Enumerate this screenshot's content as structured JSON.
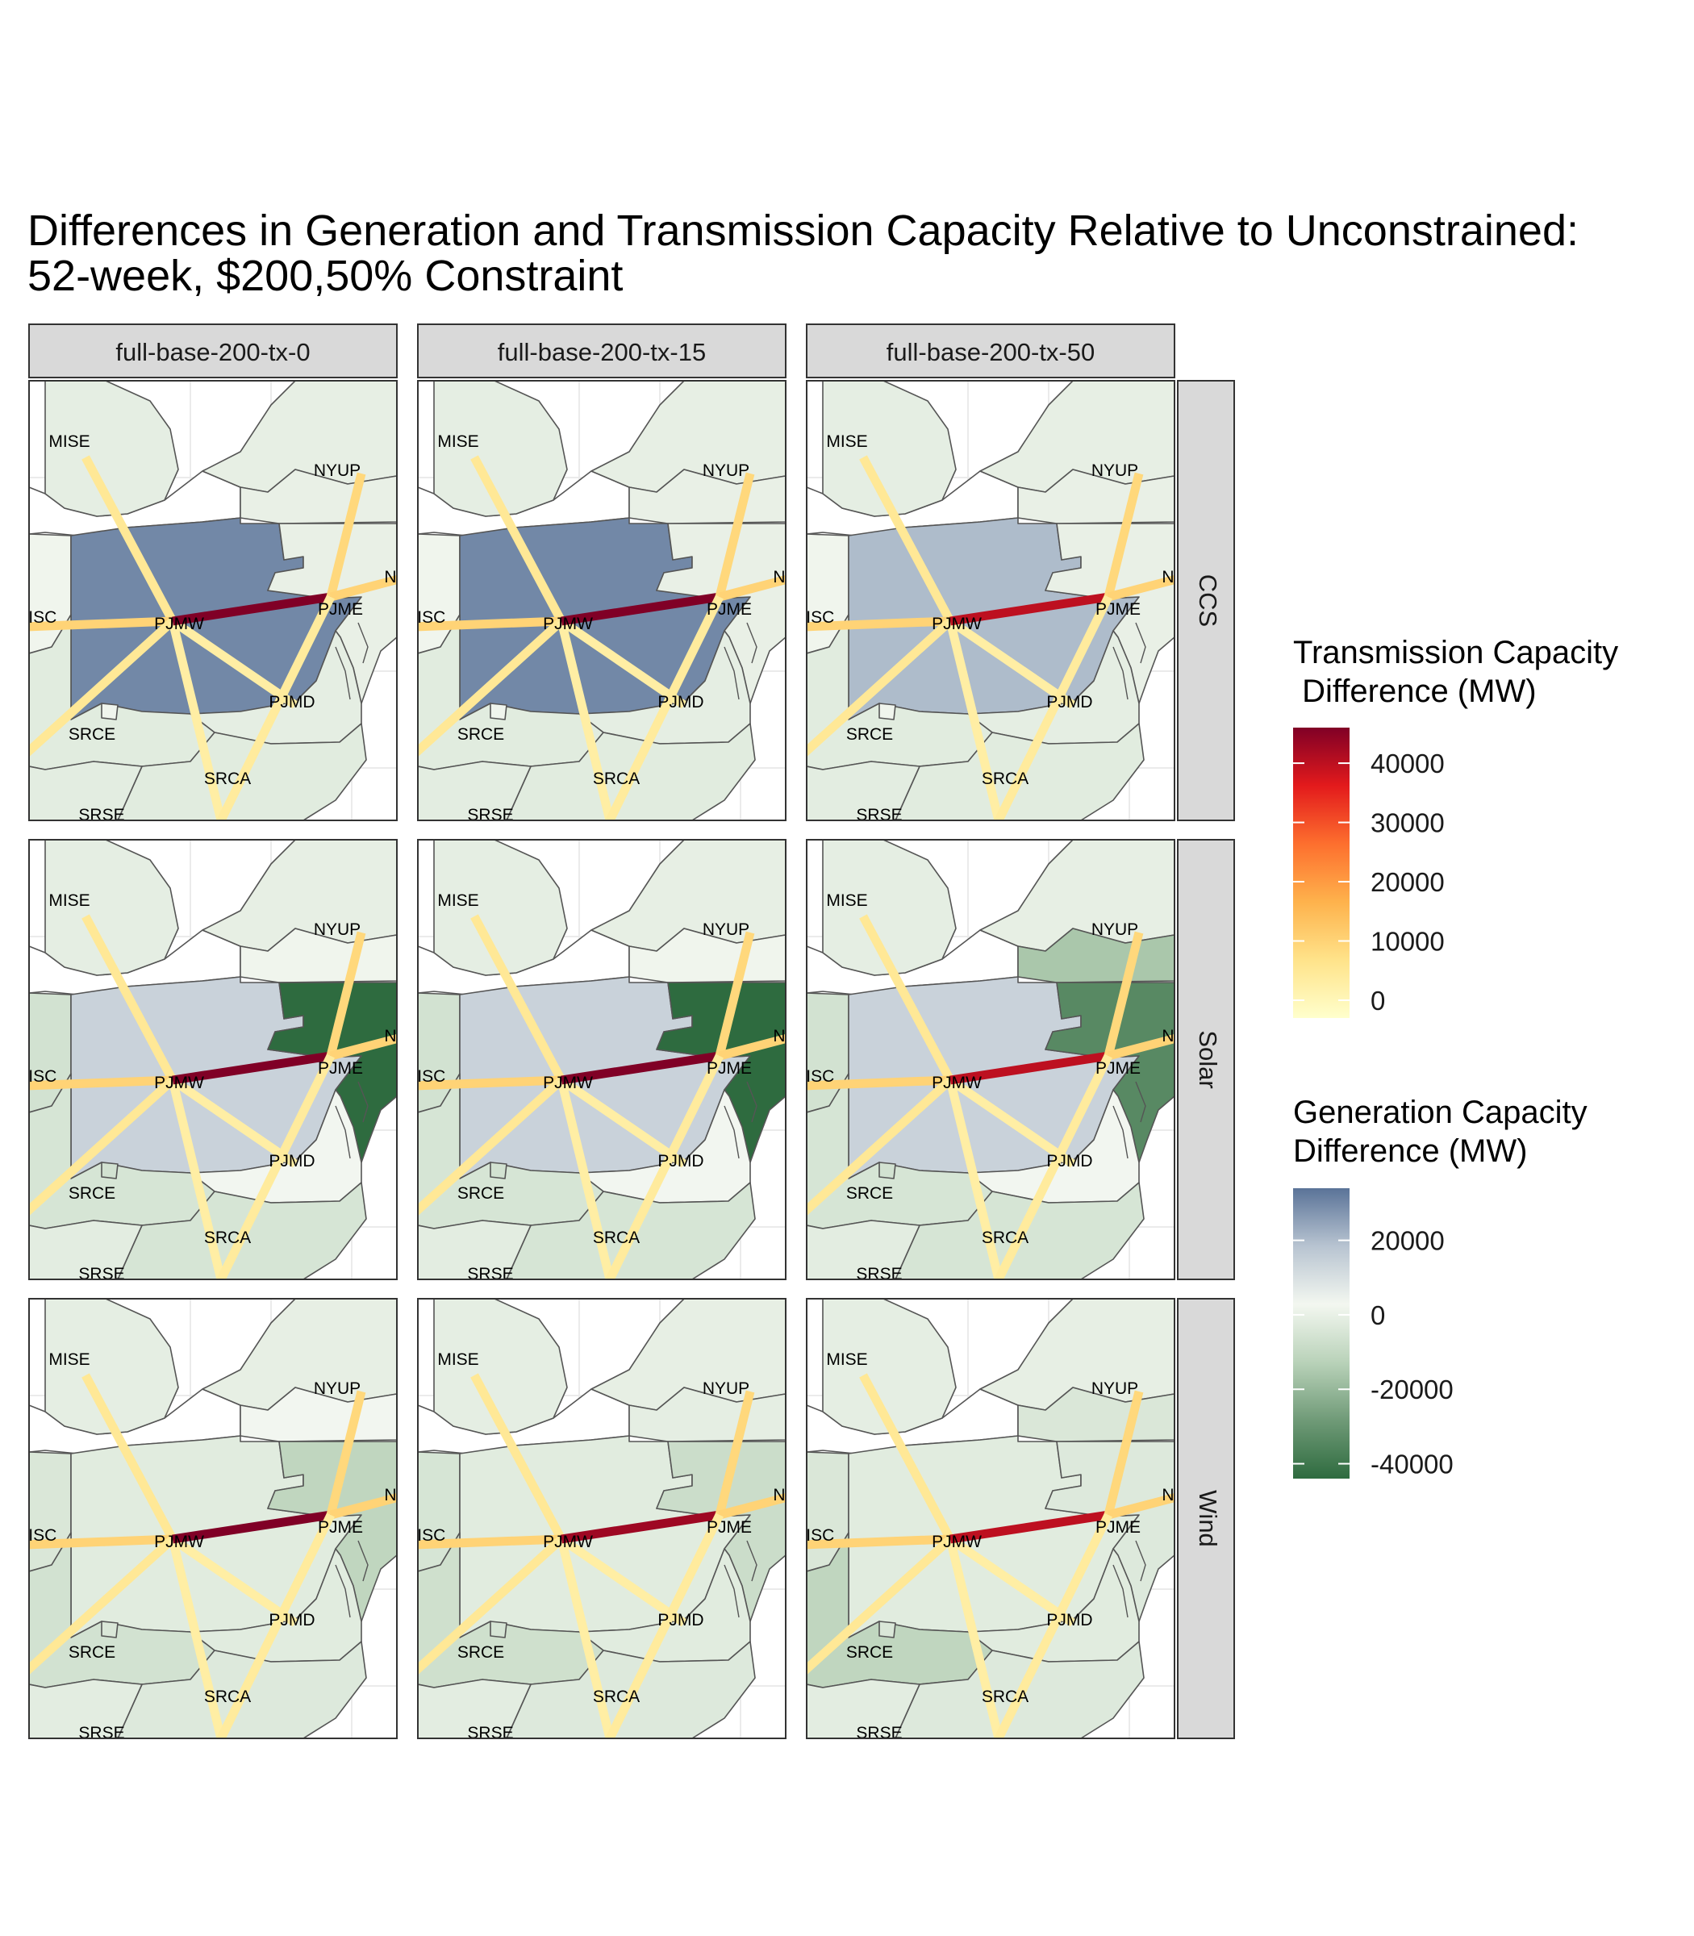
{
  "title": {
    "line1": "Differences in Generation and Transmission Capacity Relative to Unconstrained:",
    "line2": "52-week, $200,50% Constraint"
  },
  "columns": [
    "full-base-200-tx-0",
    "full-base-200-tx-15",
    "full-base-200-tx-50"
  ],
  "rows": [
    "CCS",
    "Solar",
    "Wind"
  ],
  "region_labels": [
    "MISE",
    "NYUP",
    "NY",
    "MISC",
    "PJMW",
    "PJME",
    "PJMD",
    "SRCE",
    "SRCA",
    "SRSE"
  ],
  "legends": {
    "transmission": {
      "title_line1": "Transmission Capacity",
      "title_line2": " Difference (MW)",
      "ticks": [
        "40000",
        "30000",
        "20000",
        "10000",
        "0"
      ],
      "tick_values": [
        40000,
        30000,
        20000,
        10000,
        0
      ],
      "range": [
        -3000,
        46000
      ],
      "colors": [
        "#ffffcc",
        "#ffe38a",
        "#feb24c",
        "#fd6f2e",
        "#e31a1c",
        "#800026"
      ]
    },
    "generation": {
      "title_line1": "Generation Capacity",
      "title_line2": "Difference (MW)",
      "ticks": [
        "20000",
        "0",
        "-20000",
        "-40000"
      ],
      "tick_values": [
        20000,
        0,
        -20000,
        -40000
      ],
      "range": [
        -44000,
        34000
      ],
      "colors": [
        "#2e6b3f",
        "#6f9a77",
        "#b9d2b9",
        "#f3f7f0",
        "#b8c4d1",
        "#5a7398"
      ]
    }
  },
  "chart_data": {
    "type": "map",
    "facets": [
      {
        "column": "full-base-200-tx-0",
        "row": "CCS",
        "pjmw_gen": 30000,
        "pjme_gen": 0,
        "nyup_gen": 0,
        "misc_gen": 2000,
        "srce_gen": -2000,
        "srca_gen": -2000,
        "pjmd_gen": -1000,
        "pjmw_pjme_tx": 46000
      },
      {
        "column": "full-base-200-tx-15",
        "row": "CCS",
        "pjmw_gen": 30000,
        "pjme_gen": 0,
        "nyup_gen": 0,
        "misc_gen": 2000,
        "srce_gen": -2000,
        "srca_gen": -2000,
        "pjmd_gen": -1000,
        "pjmw_pjme_tx": 46000
      },
      {
        "column": "full-base-200-tx-50",
        "row": "CCS",
        "pjmw_gen": 20000,
        "pjme_gen": 0,
        "nyup_gen": 0,
        "misc_gen": 2000,
        "srce_gen": -2000,
        "srca_gen": -2000,
        "pjmd_gen": -1000,
        "pjmw_pjme_tx": 40000
      },
      {
        "column": "full-base-200-tx-0",
        "row": "Solar",
        "pjmw_gen": 14000,
        "pjme_gen": -44000,
        "nyup_gen": 2000,
        "misc_gen": -6000,
        "srce_gen": -5000,
        "srca_gen": -5000,
        "pjmd_gen": 3000,
        "pjmw_pjme_tx": 46000
      },
      {
        "column": "full-base-200-tx-15",
        "row": "Solar",
        "pjmw_gen": 14000,
        "pjme_gen": -44000,
        "nyup_gen": 2000,
        "misc_gen": -6000,
        "srce_gen": -5000,
        "srca_gen": -5000,
        "pjmd_gen": 3000,
        "pjmw_pjme_tx": 46000
      },
      {
        "column": "full-base-200-tx-50",
        "row": "Solar",
        "pjmw_gen": 14000,
        "pjme_gen": -34000,
        "nyup_gen": -16000,
        "misc_gen": -6000,
        "srce_gen": -5000,
        "srca_gen": -5000,
        "pjmd_gen": 3000,
        "pjmw_pjme_tx": 40000
      },
      {
        "column": "full-base-200-tx-0",
        "row": "Wind",
        "pjmw_gen": -2000,
        "pjme_gen": -11000,
        "nyup_gen": 3000,
        "misc_gen": -4000,
        "srce_gen": -6000,
        "srca_gen": -3000,
        "pjmd_gen": -2000,
        "pjmw_pjme_tx": 46000
      },
      {
        "column": "full-base-200-tx-15",
        "row": "Wind",
        "pjmw_gen": -2000,
        "pjme_gen": -8000,
        "nyup_gen": -1000,
        "misc_gen": -5000,
        "srce_gen": -7000,
        "srca_gen": -3000,
        "pjmd_gen": -2000,
        "pjmw_pjme_tx": 43000
      },
      {
        "column": "full-base-200-tx-50",
        "row": "Wind",
        "pjmw_gen": -2000,
        "pjme_gen": -3000,
        "nyup_gen": -4000,
        "misc_gen": -4000,
        "srce_gen": -11000,
        "srca_gen": -3000,
        "pjmd_gen": -2000,
        "pjmw_pjme_tx": 40000
      }
    ],
    "transmission_lines": [
      {
        "from": "PJMW",
        "to": "MISE",
        "value": 5000
      },
      {
        "from": "PJMW",
        "to": "MISC",
        "value": 10000
      },
      {
        "from": "PJMW",
        "to": "SRCE",
        "value": 5000
      },
      {
        "from": "PJMW",
        "to": "SRCA",
        "value": 3000
      },
      {
        "from": "PJMW",
        "to": "PJMD",
        "value": 3000
      },
      {
        "from": "PJMW",
        "to": "PJME",
        "value": 46000
      },
      {
        "from": "PJME",
        "to": "NYUP",
        "value": 9000
      },
      {
        "from": "PJME",
        "to": "NY",
        "value": 10000
      },
      {
        "from": "PJME",
        "to": "SRCA",
        "value": 4000
      },
      {
        "from": "SRCE",
        "to": "SRSE",
        "value": 3000
      },
      {
        "from": "MISC",
        "to": "SRCE",
        "value": 4000
      }
    ]
  }
}
